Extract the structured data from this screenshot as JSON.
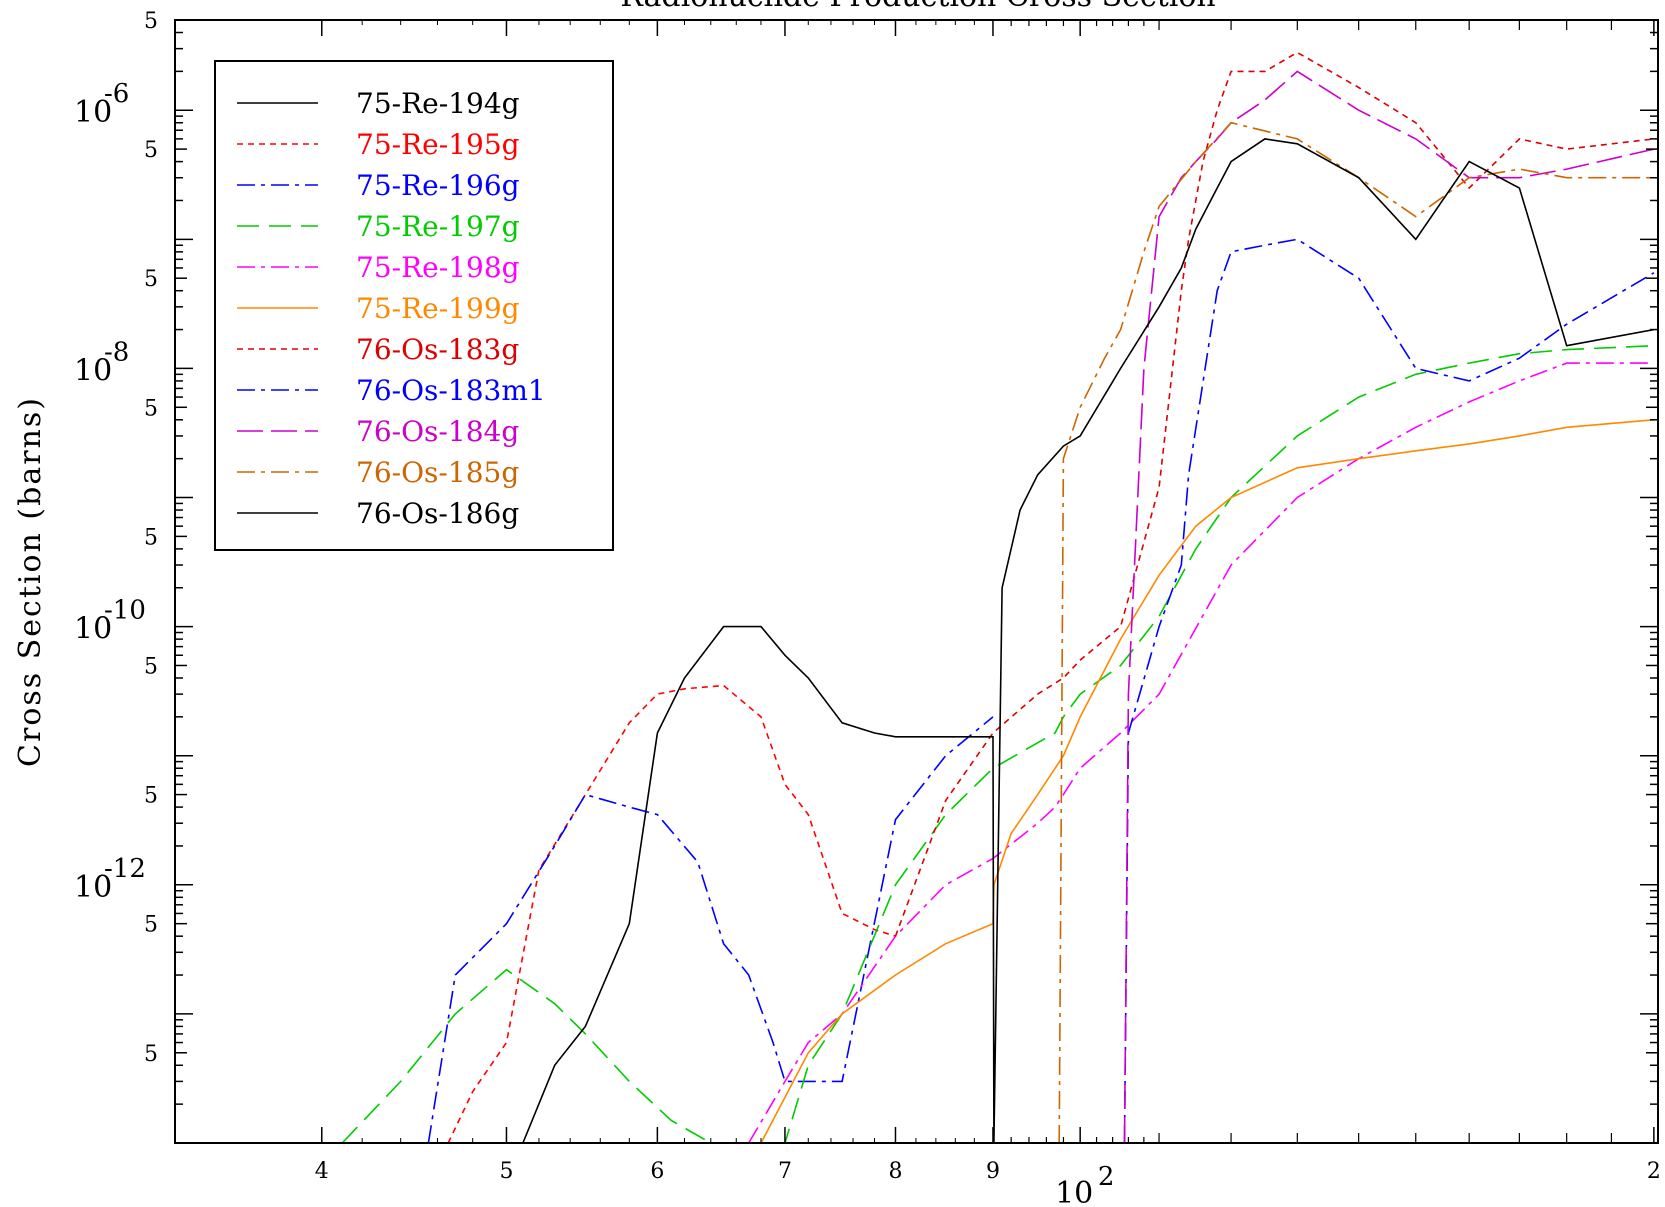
{
  "chart_data": {
    "type": "line",
    "title": "Radionuclide Production Cross Section",
    "ylabel": "Cross Section (barns)",
    "xlabel": "",
    "xscale": "log",
    "yscale": "log",
    "xlim": [
      33.5,
      201
    ],
    "ylim": [
      1e-14,
      5e-06
    ],
    "x_ticks": [
      {
        "value": 40,
        "label": "4"
      },
      {
        "value": 50,
        "label": "5"
      },
      {
        "value": 60,
        "label": "6"
      },
      {
        "value": 70,
        "label": "7"
      },
      {
        "value": 80,
        "label": "8"
      },
      {
        "value": 90,
        "label": "9"
      },
      {
        "value": 100,
        "label": "10",
        "exp": "2"
      },
      {
        "value": 200,
        "label": "2"
      }
    ],
    "y_decades": [
      {
        "value": 1e-06,
        "base": "10",
        "exp": "-6"
      },
      {
        "value": 1e-08,
        "base": "10",
        "exp": "-8"
      },
      {
        "value": 1e-10,
        "base": "10",
        "exp": "-10"
      },
      {
        "value": 1e-12,
        "base": "10",
        "exp": "-12"
      }
    ],
    "y_five_label": "5",
    "legend_position": "top-left",
    "series": [
      {
        "name": "75-Re-194g",
        "color": "#000000",
        "dash": "",
        "x": [],
        "y": []
      },
      {
        "name": "75-Re-195g",
        "color": "#ff0000",
        "dash": "6,5",
        "x": [
          46.6,
          48,
          50,
          52,
          55,
          58,
          60,
          62,
          65,
          68,
          70,
          72,
          75,
          78,
          80
        ],
        "y": [
          1e-14,
          2.5e-14,
          6e-14,
          1.3e-12,
          5e-12,
          1.8e-11,
          3e-11,
          3.3e-11,
          3.5e-11,
          2e-11,
          6e-12,
          3.5e-12,
          6e-13,
          4.5e-13,
          4e-13
        ]
      },
      {
        "name": "75-Re-196g",
        "color": "#0000ff",
        "dash": "18,6,4,6",
        "x": [
          45.5,
          47,
          50,
          53,
          55,
          58,
          60,
          63,
          65,
          67,
          69,
          70,
          72,
          75,
          80,
          85,
          90
        ],
        "y": [
          1e-14,
          2e-13,
          5e-13,
          2e-12,
          5e-12,
          4e-12,
          3.5e-12,
          1.5e-12,
          3.5e-13,
          2e-13,
          6e-14,
          3e-14,
          3e-14,
          3e-14,
          3.2e-12,
          1e-11,
          2e-11
        ]
      },
      {
        "name": "75-Re-197g",
        "color": "#00cc00",
        "dash": "22,10",
        "x": [
          41,
          44,
          47,
          50,
          53,
          55,
          58,
          61,
          64,
          70,
          72,
          75,
          80,
          85,
          90,
          97,
          98,
          100,
          105,
          110,
          115,
          120,
          130,
          140,
          150,
          160,
          170,
          180,
          200
        ],
        "y": [
          1e-14,
          3e-14,
          1e-13,
          2.2e-13,
          1.2e-13,
          7e-14,
          3e-14,
          1.5e-14,
          1e-14,
          1e-14,
          4e-14,
          1e-13,
          1e-12,
          3.5e-12,
          8e-12,
          1.5e-11,
          2e-11,
          3e-11,
          5e-11,
          1.2e-10,
          4e-10,
          1e-09,
          3e-09,
          6e-09,
          9e-09,
          1.1e-08,
          1.3e-08,
          1.4e-08,
          1.5e-08
        ]
      },
      {
        "name": "75-Re-198g",
        "color": "#ff00ff",
        "dash": "18,6,4,6",
        "x": [
          67,
          70,
          72,
          75,
          80,
          85,
          90,
          95,
          97,
          98,
          100,
          105,
          110,
          120,
          130,
          140,
          150,
          160,
          170,
          180,
          200
        ],
        "y": [
          1e-14,
          3e-14,
          6e-14,
          1e-13,
          4e-13,
          1e-12,
          1.6e-12,
          3e-12,
          4e-12,
          5e-12,
          8e-12,
          1.5e-11,
          3e-11,
          3e-10,
          1e-09,
          2e-09,
          3.5e-09,
          5.5e-09,
          8e-09,
          1.1e-08,
          1.1e-08
        ]
      },
      {
        "name": "75-Re-199g",
        "color": "#ff8800",
        "dash": "",
        "x": [
          68,
          72,
          75,
          80,
          85,
          90,
          90.1,
          92,
          95,
          98,
          100,
          105,
          110,
          115,
          120,
          130,
          140,
          150,
          160,
          170,
          180,
          200
        ],
        "y": [
          1e-14,
          5e-14,
          1e-13,
          2e-13,
          3.5e-13,
          5e-13,
          1e-12,
          2.5e-12,
          5e-12,
          1e-11,
          2e-11,
          8e-11,
          2.5e-10,
          6e-10,
          1e-09,
          1.7e-09,
          2e-09,
          2.3e-09,
          2.6e-09,
          3e-09,
          3.5e-09,
          4e-09
        ]
      },
      {
        "name": "76-Os-183g",
        "color": "#dd0000",
        "dash": "6,5",
        "x": [
          80,
          85,
          90,
          95,
          98,
          100,
          105,
          110,
          113,
          114,
          116,
          118,
          120,
          125,
          130,
          140,
          150,
          160,
          170,
          180,
          200
        ],
        "y": [
          4e-13,
          4.5e-12,
          1.5e-11,
          3e-11,
          4e-11,
          5.5e-11,
          1e-10,
          1.2e-09,
          4e-08,
          1e-07,
          4e-07,
          1e-06,
          2e-06,
          2e-06,
          2.8e-06,
          1.5e-06,
          8e-07,
          2.5e-07,
          6e-07,
          5e-07,
          6e-07
        ]
      },
      {
        "name": "76-Os-183m1",
        "color": "#0000ff",
        "dash": "18,6,4,6",
        "x": [
          105.5,
          106,
          110,
          113,
          114,
          118,
          120,
          125,
          130,
          140,
          150,
          160,
          170,
          180,
          200
        ],
        "y": [
          1e-14,
          1.5e-11,
          1e-10,
          3e-10,
          1.5e-09,
          4e-08,
          8e-08,
          9e-08,
          1e-07,
          5e-08,
          1e-08,
          8e-09,
          1.2e-08,
          2.2e-08,
          5.5e-08
        ]
      },
      {
        "name": "76-Os-184g",
        "color": "#cc00cc",
        "dash": "26,8",
        "x": [
          105.5,
          106,
          108,
          110,
          113,
          115,
          118,
          120,
          125,
          130,
          140,
          150,
          160,
          170,
          180,
          200
        ],
        "y": [
          1e-14,
          3e-11,
          1e-08,
          1.5e-07,
          3e-07,
          4e-07,
          6e-07,
          8e-07,
          1.2e-06,
          2e-06,
          1e-06,
          6e-07,
          3e-07,
          3e-07,
          3.5e-07,
          5e-07
        ]
      },
      {
        "name": "76-Os-185g",
        "color": "#cc6600",
        "dash": "18,6,4,6",
        "x": [
          97.5,
          98,
          100,
          103,
          105,
          108,
          110,
          115,
          120,
          130,
          140,
          150,
          160,
          170,
          180,
          200
        ],
        "y": [
          1e-14,
          2e-09,
          5e-09,
          1.2e-08,
          2e-08,
          8e-08,
          1.8e-07,
          4e-07,
          8e-07,
          6e-07,
          3e-07,
          1.5e-07,
          3e-07,
          3.5e-07,
          3e-07,
          3e-07
        ]
      },
      {
        "name": "76-Os-186g",
        "color": "#000000",
        "dash": "",
        "x": [
          51,
          53,
          55,
          58,
          60,
          62,
          65,
          68,
          70,
          72,
          75,
          78,
          80,
          85,
          90,
          90.1,
          91,
          93,
          95,
          98,
          100,
          105,
          110,
          113,
          115,
          118,
          120,
          125,
          130,
          140,
          150,
          160,
          170,
          180,
          200
        ],
        "y": [
          1e-14,
          4e-14,
          8e-14,
          5e-13,
          1.5e-11,
          4e-11,
          1e-10,
          1e-10,
          6e-11,
          4e-11,
          1.8e-11,
          1.5e-11,
          1.4e-11,
          1.4e-11,
          1.4e-11,
          1e-14,
          2e-10,
          8e-10,
          1.5e-09,
          2.5e-09,
          3e-09,
          1e-08,
          3e-08,
          6e-08,
          1.2e-07,
          2.5e-07,
          4e-07,
          6e-07,
          5.5e-07,
          3e-07,
          1e-07,
          4e-07,
          2.5e-07,
          1.5e-08,
          2e-08
        ]
      }
    ]
  }
}
